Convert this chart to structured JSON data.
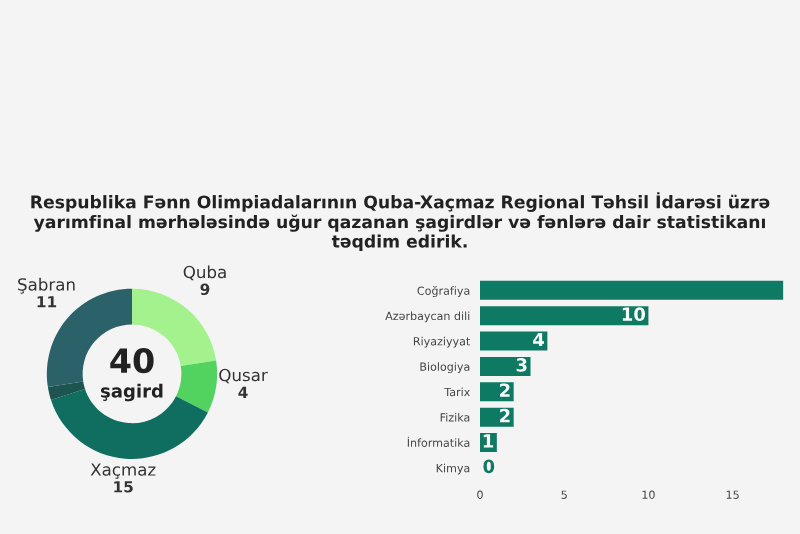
{
  "chart_data": [
    {
      "type": "donut",
      "title": "Respublika Fənn Olimpiadalarının Quba-Xaçmaz Regional Təhsil İdarəsi üzrə yarımfinal mərhələsində uğur qazanan şagirdlər və fənlərə dair statistikanı təqdim edirik.",
      "categories": [
        "Quba",
        "Qusar",
        "Xaçmaz",
        null,
        "Şabran"
      ],
      "values": [
        9,
        4,
        15,
        1,
        11
      ],
      "colors": [
        "#a3f28e",
        "#52d35f",
        "#0f6e5f",
        "#1d5450",
        "#2b6169"
      ],
      "value_labels": [
        "9",
        "4",
        "15",
        null,
        "11"
      ],
      "annotations": [
        "40",
        "şagird"
      ]
    },
    {
      "type": "bar",
      "orientation": "horizontal",
      "categories": [
        "Coğrafiya",
        "Azərbaycan dili",
        "Riyaziyyat",
        "Biologiya",
        "Tarix",
        "Fizika",
        "İnformatika",
        "Kimya"
      ],
      "values": [
        18,
        10,
        4,
        3,
        2,
        2,
        1,
        0
      ],
      "value_labels": [
        null,
        "10",
        "4",
        "3",
        "2",
        "2",
        "1",
        "0"
      ],
      "color": "#0f7a63",
      "xlim": [
        0,
        19
      ],
      "xticks": [
        0,
        5,
        10,
        15
      ],
      "grid": false
    }
  ]
}
